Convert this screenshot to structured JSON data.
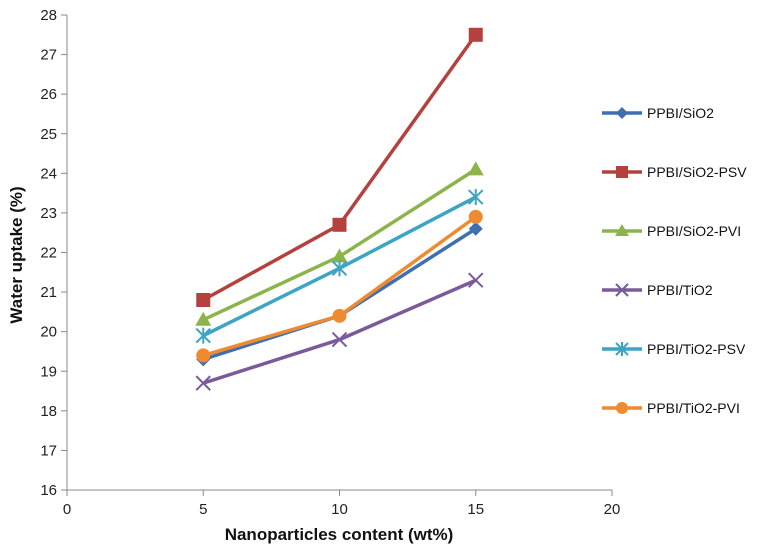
{
  "chart_data": {
    "type": "line",
    "title": "",
    "xlabel": "Nanoparticles content (wt%)",
    "ylabel": "Water uptake (%)",
    "xlim": [
      0,
      20
    ],
    "ylim": [
      16,
      28
    ],
    "xticks": [
      "0",
      "5",
      "10",
      "15",
      "20"
    ],
    "yticks": [
      "16",
      "17",
      "18",
      "19",
      "20",
      "21",
      "22",
      "23",
      "24",
      "25",
      "26",
      "27",
      "28"
    ],
    "grid": false,
    "legend_position": "right",
    "x": [
      5,
      10,
      15
    ],
    "series": [
      {
        "name": "PPBI/SiO2",
        "values": [
          19.3,
          20.4,
          22.6
        ],
        "color": "#3f6fb0",
        "marker": "diamond"
      },
      {
        "name": "PPBI/SiO2-PSV",
        "values": [
          20.8,
          22.7,
          27.5
        ],
        "color": "#b5413e",
        "marker": "square"
      },
      {
        "name": "PPBI/SiO2-PVI",
        "values": [
          20.3,
          21.9,
          24.1
        ],
        "color": "#8cb44a",
        "marker": "triangle"
      },
      {
        "name": "PPBI/TiO2",
        "values": [
          18.7,
          19.8,
          21.3
        ],
        "color": "#7a5a9b",
        "marker": "x"
      },
      {
        "name": "PPBI/TiO2-PSV",
        "values": [
          19.9,
          21.6,
          23.4
        ],
        "color": "#3ea4c4",
        "marker": "asterisk"
      },
      {
        "name": "PPBI/TiO2-PVI",
        "values": [
          19.4,
          20.4,
          22.9
        ],
        "color": "#ee8a30",
        "marker": "circle"
      }
    ]
  }
}
